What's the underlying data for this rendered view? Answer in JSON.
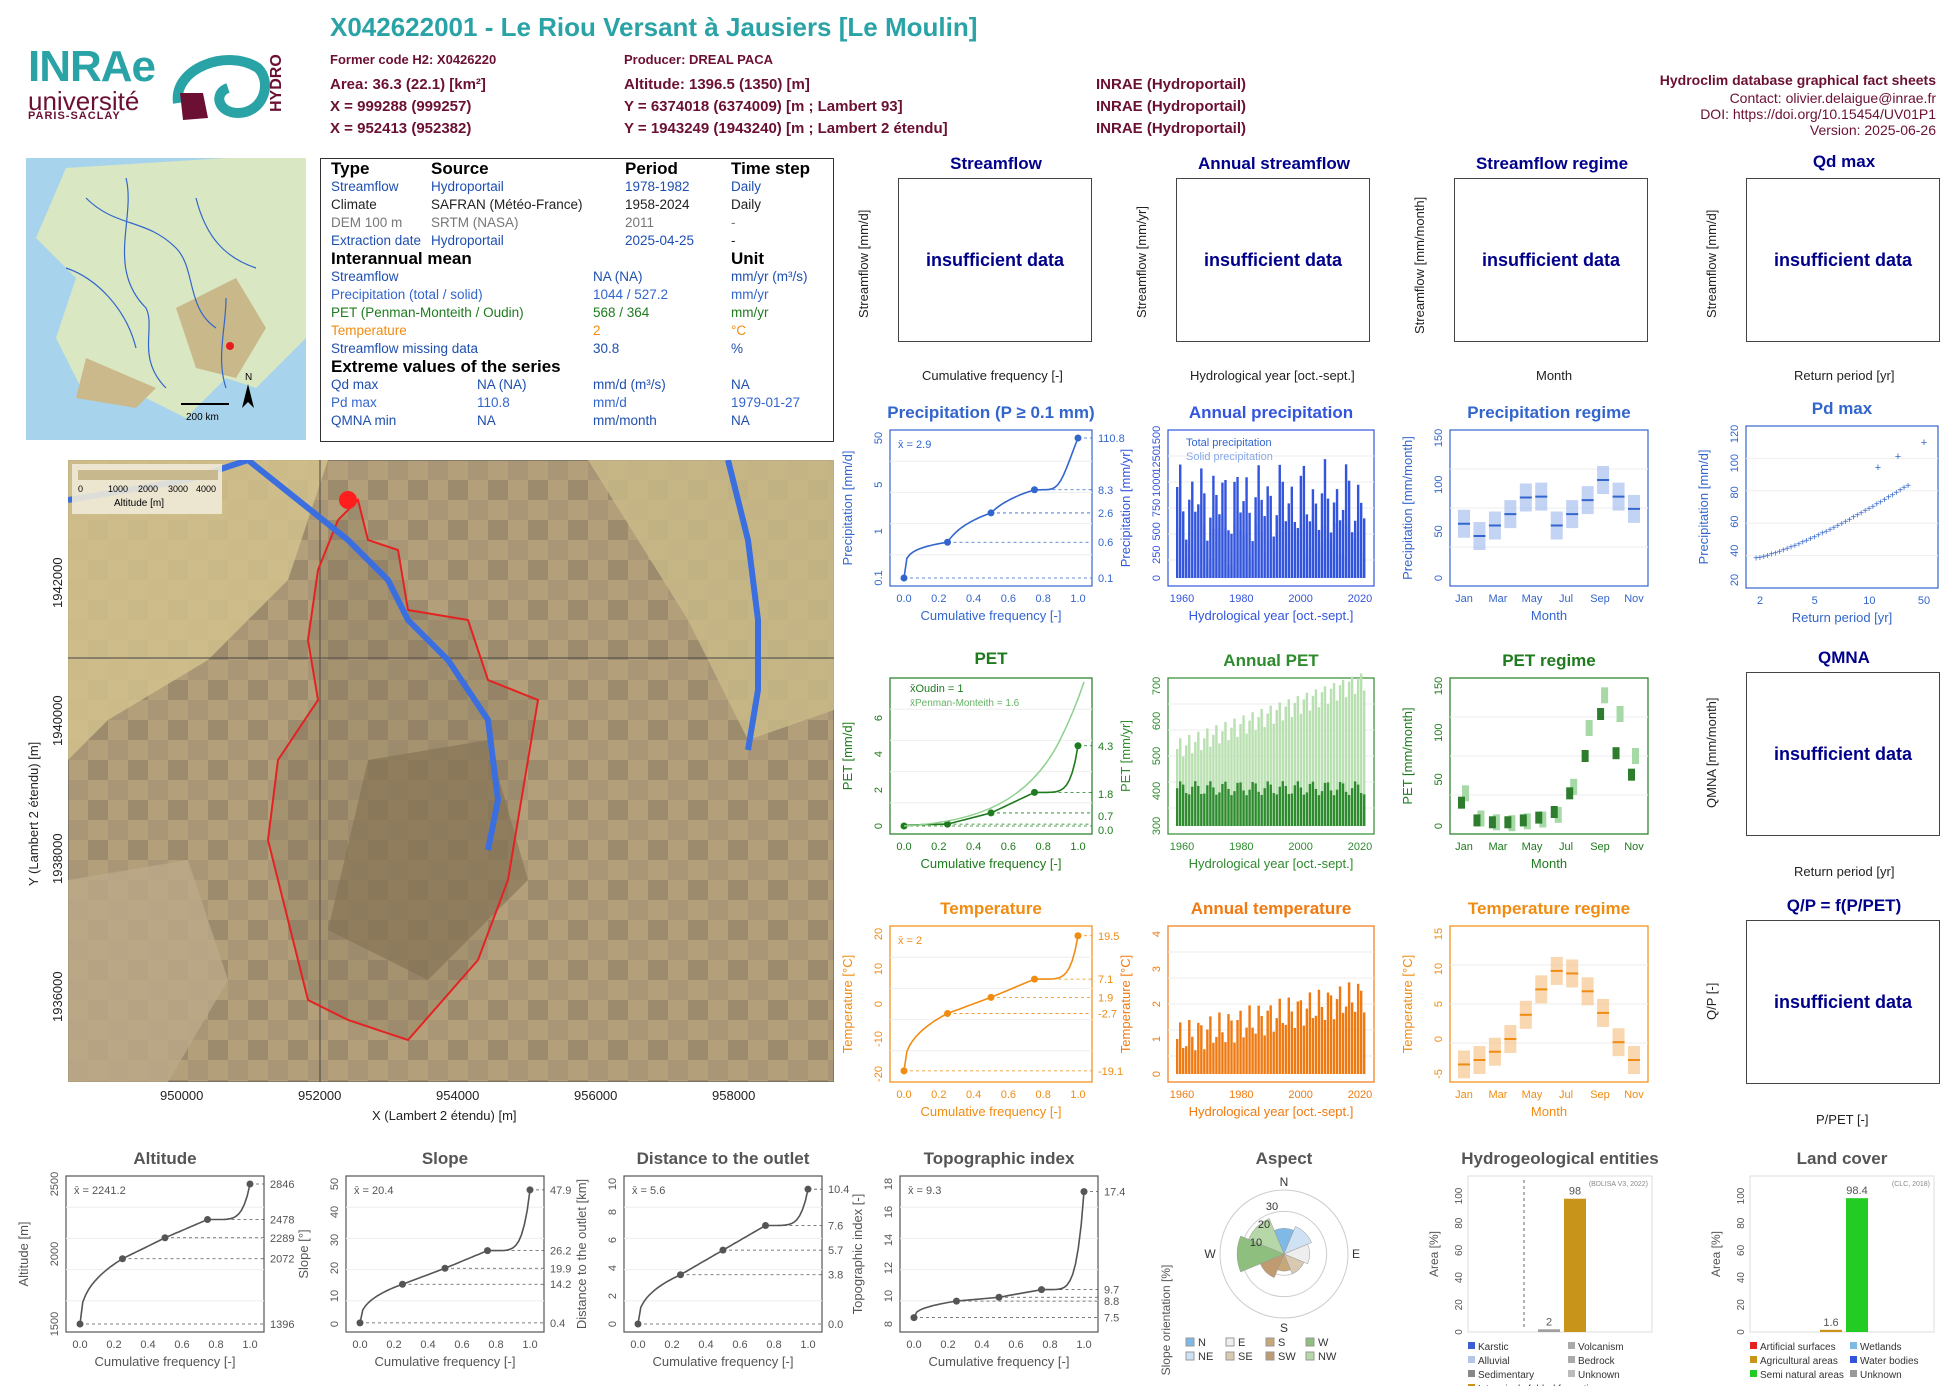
{
  "header": {
    "title": "X042622001 - Le Riou Versant à Jausiers [Le Moulin]",
    "former_code": "Former code H2: X0426220",
    "producer": "Producer: DREAL PACA",
    "area": "Area: 36.3 (22.1) [km²]",
    "altitude": "Altitude: 1396.5 (1350) [m]",
    "x93": "X = 999288 (999257)",
    "y93": "Y = 6374018 (6374009) [m ; Lambert 93]",
    "x2": "X = 952413 (952382)",
    "y2": "Y = 1943249 (1943240) [m ; Lambert 2 étendu]",
    "src1": "INRAE (Hydroportail)",
    "src2": "INRAE (Hydroportail)",
    "src3": "INRAE (Hydroportail)",
    "right1": "Hydroclim database graphical fact sheets",
    "right2": "Contact: olivier.delaigue@inrae.fr",
    "right3": "DOI: https://doi.org/10.15454/UV01P1",
    "right4": "Version: 2025-06-26"
  },
  "logos": {
    "inrae": "INRAe",
    "univ": "université",
    "paris": "PARIS-SACLAY",
    "hydro": "HYDRO"
  },
  "colors": {
    "teal": "#2aa3a6",
    "maroon": "#6b1033",
    "blue": "#3366cc",
    "darkblue": "#00008b",
    "green": "#1e7b1e",
    "orange": "#f08c12",
    "gray": "#555555"
  },
  "info": {
    "h_type": "Type",
    "h_source": "Source",
    "h_period": "Period",
    "h_step": "Time step",
    "r1": [
      "Streamflow",
      "Hydroportail",
      "1978-1982",
      "Daily"
    ],
    "r2": [
      "Climate",
      "SAFRAN (Météo-France)",
      "1958-2024",
      "Daily"
    ],
    "r3": [
      "DEM 100 m",
      "SRTM (NASA)",
      "2011",
      "-"
    ],
    "r4": [
      "Extraction date",
      "Hydroportail",
      "2025-04-25",
      "-"
    ],
    "h_mean": "Interannual mean",
    "h_unit": "Unit",
    "m1": [
      "Streamflow",
      "NA (NA)",
      "mm/yr (m³/s)"
    ],
    "m2": [
      "Precipitation (total / solid)",
      "1044 / 527.2",
      "mm/yr"
    ],
    "m3": [
      "PET (Penman-Monteith / Oudin)",
      "568 / 364",
      "mm/yr"
    ],
    "m4": [
      "Temperature",
      "2",
      "°C"
    ],
    "m5": [
      "Streamflow missing data",
      "30.8",
      "%"
    ],
    "h_ext": "Extreme values of the series",
    "e1": [
      "Qd max",
      "NA (NA)",
      "mm/d (m³/s)",
      "NA"
    ],
    "e2": [
      "Pd max",
      "110.8",
      "mm/d",
      "1979-01-27"
    ],
    "e3": [
      "QMNA min",
      "NA",
      "mm/month",
      "NA"
    ]
  },
  "insufficient": "insufficient data",
  "panels": {
    "streamflow": {
      "title": "Streamflow",
      "ylabel": "Streamflow [mm/d]",
      "xlabel": "Cumulative frequency [-]"
    },
    "annual_streamflow": {
      "title": "Annual streamflow",
      "ylabel": "Streamflow [mm/yr]",
      "xlabel": "Hydrological year [oct.-sept.]"
    },
    "streamflow_regime": {
      "title": "Streamflow regime",
      "ylabel": "Streamflow [mm/month]",
      "xlabel": "Month"
    },
    "qd_max": {
      "title": "Qd  max",
      "ylabel": "Streamflow [mm/d]",
      "xlabel": "Return period [yr]"
    },
    "qmna": {
      "title": "QMNA",
      "ylabel": "QMNA [mm/month]",
      "xlabel": "Return period [yr]"
    },
    "qp": {
      "title": "Q/P = f(P/PET)",
      "ylabel": "Q/P [-]",
      "xlabel": "P/PET [-]"
    }
  },
  "map": {
    "xlabel": "X (Lambert 2 étendu) [m]",
    "ylabel": "Y (Lambert 2 étendu) [m]",
    "xticks": [
      "950000",
      "952000",
      "954000",
      "956000",
      "958000"
    ],
    "yticks": [
      "1942000",
      "1940000",
      "1938000",
      "1936000"
    ],
    "legend": "Altitude [m]",
    "legend_ticks": [
      "0",
      "1000",
      "2000",
      "3000",
      "4000"
    ],
    "scale": "200 km"
  },
  "chart_data": [
    {
      "type": "line",
      "title": "Precipitation (P ≥ 0.1 mm)",
      "xlabel": "Cumulative frequency [-]",
      "ylabel": "Precipitation [mm/d]",
      "mean": "x̄ = 2.9",
      "x": [
        0,
        0.25,
        0.5,
        0.75,
        1
      ],
      "y": [
        0.1,
        0.6,
        2.6,
        8.3,
        110.8
      ],
      "right_labels": [
        "110.8",
        "8.3",
        "2.6",
        "0.6",
        "0.1"
      ],
      "yticks": [
        "0.1",
        "1",
        "5",
        "50"
      ],
      "xticks": [
        "0.0",
        "0.2",
        "0.4",
        "0.6",
        "0.8",
        "1.0"
      ]
    },
    {
      "type": "bar",
      "title": "Annual precipitation",
      "xlabel": "Hydrological year [oct.-sept.]",
      "ylabel": "Precipitation [mm/yr]",
      "series": [
        {
          "name": "Total precipitation"
        },
        {
          "name": "Solid precipitation"
        }
      ],
      "yticks": [
        "0",
        "250",
        "500",
        "750",
        "1000",
        "1250",
        "1500"
      ],
      "xticks": [
        "1960",
        "1980",
        "2000",
        "2020"
      ]
    },
    {
      "type": "box",
      "title": "Precipitation regime",
      "xlabel": "Month",
      "ylabel": "Precipitation [mm/month]",
      "categories": [
        "Oct",
        "Nov",
        "Dec",
        "Jan",
        "Feb",
        "Mar",
        "Apr",
        "May",
        "Jun",
        "Jul",
        "Aug",
        "Sep"
      ],
      "values": [
        62,
        48,
        60,
        73,
        92,
        93,
        60,
        73,
        89,
        112,
        93,
        79
      ],
      "yticks": [
        "0",
        "50",
        "100",
        "150"
      ],
      "xticks": [
        "Jan",
        "Mar",
        "May",
        "Jul",
        "Sep",
        "Nov"
      ]
    },
    {
      "type": "scatter",
      "title": "Pd  max",
      "xlabel": "Return period [yr]",
      "ylabel": "Precipitation [mm/d]",
      "yticks": [
        "20",
        "40",
        "60",
        "80",
        "100",
        "120"
      ],
      "xticks": [
        "2",
        "5",
        "10",
        "50"
      ],
      "max": 110.8
    },
    {
      "type": "line",
      "title": "PET",
      "xlabel": "Cumulative frequency [-]",
      "ylabel": "PET [mm/d]",
      "series": [
        {
          "name": "x̄Oudin = 1",
          "x": [
            0,
            0.25,
            0.5,
            0.75,
            1
          ],
          "y": [
            0,
            0.1,
            0.7,
            1.8,
            4.3
          ]
        },
        {
          "name": "x̄Penman-Monteith = 1.6"
        }
      ],
      "right_labels": [
        "4.3",
        "1.8",
        "0.7",
        "0.0"
      ],
      "yticks": [
        "0",
        "2",
        "4",
        "6"
      ],
      "xticks": [
        "0.0",
        "0.2",
        "0.4",
        "0.6",
        "0.8",
        "1.0"
      ]
    },
    {
      "type": "bar",
      "title": "Annual PET",
      "xlabel": "Hydrological year [oct.-sept.]",
      "ylabel": "PET [mm/yr]",
      "yticks": [
        "300",
        "400",
        "500",
        "600",
        "700"
      ],
      "xticks": [
        "1960",
        "1980",
        "2000",
        "2020"
      ]
    },
    {
      "type": "box",
      "title": "PET regime",
      "xlabel": "Month",
      "ylabel": "PET [mm/month]",
      "categories": [
        "Oct",
        "Nov",
        "Dec",
        "Jan",
        "Feb",
        "Mar",
        "Apr",
        "May",
        "Jun",
        "Jul",
        "Aug",
        "Sep"
      ],
      "oudin": [
        4,
        6,
        9,
        15,
        35,
        75,
        120,
        78,
        55,
        25,
        6,
        4
      ],
      "pm": [
        3,
        5,
        7,
        12,
        42,
        105,
        140,
        120,
        75,
        35,
        8,
        4
      ],
      "yticks": [
        "0",
        "50",
        "100",
        "150"
      ],
      "xticks": [
        "Jan",
        "Mar",
        "May",
        "Jul",
        "Sep",
        "Nov"
      ]
    },
    {
      "type": "line",
      "title": "Temperature",
      "xlabel": "Cumulative frequency [-]",
      "ylabel": "Temperature [°C]",
      "mean": "x̄ = 2",
      "x": [
        0,
        0.25,
        0.5,
        0.75,
        1
      ],
      "y": [
        -19.1,
        -2.7,
        1.9,
        7.1,
        19.5
      ],
      "right_labels": [
        "19.5",
        "7.1",
        "1.9",
        "-2.7",
        "-19.1"
      ],
      "yticks": [
        "-20",
        "-10",
        "0",
        "10",
        "20"
      ],
      "xticks": [
        "0.0",
        "0.2",
        "0.4",
        "0.6",
        "0.8",
        "1.0"
      ]
    },
    {
      "type": "bar",
      "title": "Annual temperature",
      "xlabel": "Hydrological year [oct.-sept.]",
      "ylabel": "Temperature [°C]",
      "yticks": [
        "0",
        "1",
        "2",
        "3",
        "4"
      ],
      "xticks": [
        "1960",
        "1980",
        "2000",
        "2020"
      ]
    },
    {
      "type": "box",
      "title": "Temperature regime",
      "xlabel": "Month",
      "ylabel": "Temperature [°C]",
      "categories": [
        "Oct",
        "Nov",
        "Dec",
        "Jan",
        "Feb",
        "Mar",
        "Apr",
        "May",
        "Jun",
        "Jul",
        "Aug",
        "Sep"
      ],
      "values": [
        -4.5,
        -3.8,
        -2.5,
        -0.5,
        3.3,
        7.3,
        10.2,
        9.8,
        7,
        3.6,
        -1,
        -3.8
      ],
      "yticks": [
        "-5",
        "0",
        "5",
        "10",
        "15"
      ],
      "xticks": [
        "Jan",
        "Mar",
        "May",
        "Jul",
        "Sep",
        "Nov"
      ]
    },
    {
      "type": "line",
      "title": "Altitude",
      "xlabel": "Cumulative frequency [-]",
      "ylabel": "Altitude [m]",
      "mean": "x̄ = 2241.2",
      "x": [
        0,
        0.25,
        0.5,
        0.75,
        1
      ],
      "y": [
        1396,
        2072,
        2289,
        2478,
        2846
      ],
      "right_labels": [
        "2846",
        "2478",
        "2289",
        "2072",
        "1396"
      ],
      "yticks": [
        "1500",
        "2000",
        "2500"
      ],
      "xticks": [
        "0.0",
        "0.2",
        "0.4",
        "0.6",
        "0.8",
        "1.0"
      ],
      "ymin": 1396,
      "ymax": 2846
    },
    {
      "type": "line",
      "title": "Slope",
      "xlabel": "Cumulative frequency [-]",
      "ylabel": "Slope [°]",
      "mean": "x̄ = 20.4",
      "x": [
        0,
        0.25,
        0.5,
        0.75,
        1
      ],
      "y": [
        0.4,
        14.2,
        19.9,
        26.2,
        47.9
      ],
      "right_labels": [
        "47.9",
        "26.2",
        "19.9",
        "14.2",
        "0.4"
      ],
      "yticks": [
        "0",
        "10",
        "20",
        "30",
        "40",
        "50"
      ],
      "xticks": [
        "0.0",
        "0.2",
        "0.4",
        "0.6",
        "0.8",
        "1.0"
      ],
      "ymin": 0,
      "ymax": 50
    },
    {
      "type": "line",
      "title": "Distance to the outlet",
      "xlabel": "Cumulative frequency [-]",
      "ylabel": "Distance to the outlet [km]",
      "mean": "x̄ = 5.6",
      "x": [
        0,
        0.25,
        0.5,
        0.75,
        1
      ],
      "y": [
        0,
        3.8,
        5.7,
        7.6,
        10.4
      ],
      "right_labels": [
        "10.4",
        "7.6",
        "5.7",
        "3.8",
        "0.0"
      ],
      "yticks": [
        "0",
        "2",
        "4",
        "6",
        "8",
        "10"
      ],
      "xticks": [
        "0.0",
        "0.2",
        "0.4",
        "0.6",
        "0.8",
        "1.0"
      ],
      "ymin": 0,
      "ymax": 10.8
    },
    {
      "type": "line",
      "title": "Topographic index",
      "xlabel": "Cumulative frequency [-]",
      "ylabel": "Topographic index [-]",
      "mean": "x̄ = 9.3",
      "x": [
        0,
        0.25,
        0.5,
        0.75,
        1
      ],
      "y": [
        7.5,
        8.8,
        9.1,
        9.7,
        17.4
      ],
      "right_labels": [
        "17.4",
        "9.7",
        "8.8",
        "7.5"
      ],
      "yticks": [
        "8",
        "10",
        "12",
        "14",
        "16",
        "18"
      ],
      "xticks": [
        "0.0",
        "0.2",
        "0.4",
        "0.6",
        "0.8",
        "1.0"
      ],
      "ymin": 7,
      "ymax": 18
    },
    {
      "type": "radar",
      "title": "Aspect",
      "ylabel": "Slope orientation [%]",
      "directions": [
        "N",
        "NE",
        "E",
        "SE",
        "S",
        "SW",
        "W",
        "NW"
      ],
      "values": [
        12,
        14,
        12,
        10,
        8,
        12,
        22,
        18
      ],
      "ring_labels": [
        "10",
        "20",
        "30"
      ],
      "legend": [
        "N",
        "NE",
        "E",
        "SE",
        "S",
        "SW",
        "W",
        "NW"
      ]
    },
    {
      "type": "bar",
      "title": "Hydrogeological entities",
      "ylabel": "Area [%]",
      "note": "(BDLISA V3, 2022)",
      "categories": [
        "Sedimentary",
        "Intensively folded formation"
      ],
      "values": [
        2,
        98
      ],
      "data_labels": [
        "2",
        "98"
      ],
      "yticks": [
        "0",
        "20",
        "40",
        "60",
        "80",
        "100"
      ],
      "legend": [
        "Karstic",
        "Volcanism",
        "Alluvial",
        "Bedrock",
        "Sedimentary",
        "Unknown",
        "Intensively folded formation"
      ]
    },
    {
      "type": "bar",
      "title": "Land cover",
      "ylabel": "Area [%]",
      "note": "(CLC, 2018)",
      "categories": [
        "Agricultural areas",
        "Semi natural areas"
      ],
      "values": [
        1.6,
        98.4
      ],
      "data_labels": [
        "1.6",
        "98.4"
      ],
      "yticks": [
        "0",
        "20",
        "40",
        "60",
        "80",
        "100"
      ],
      "legend": [
        "Artificial surfaces",
        "Wetlands",
        "Agricultural areas",
        "Water bodies",
        "Semi natural areas",
        "Unknown"
      ]
    }
  ]
}
